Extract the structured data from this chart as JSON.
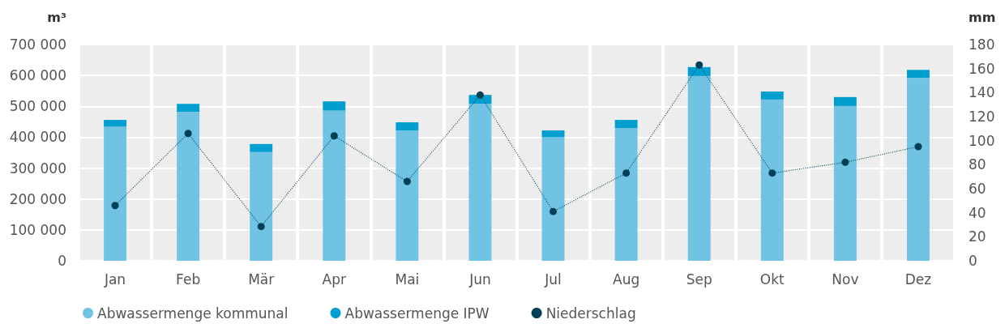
{
  "chart_data": {
    "type": "bar",
    "categories": [
      "Jan",
      "Feb",
      "Mär",
      "Apr",
      "Mai",
      "Jun",
      "Jul",
      "Aug",
      "Sep",
      "Okt",
      "Nov",
      "Dez"
    ],
    "series": [
      {
        "name": "Abwassermenge kommunal",
        "color": "#70c3e3",
        "values": [
          434000,
          482000,
          352000,
          486000,
          422000,
          508000,
          401000,
          430000,
          598000,
          522000,
          501000,
          592000
        ]
      },
      {
        "name": "Abwassermenge IPW",
        "color": "#009fd0",
        "values": [
          22000,
          26000,
          26000,
          30000,
          26000,
          29000,
          21000,
          26000,
          29000,
          26000,
          29000,
          26000
        ]
      },
      {
        "name": "Niederschlag",
        "color": "#003f55",
        "type": "line",
        "axis": "y2",
        "values": [
          46,
          106,
          28.5,
          104,
          66,
          138,
          41,
          73,
          163,
          73,
          82,
          95
        ]
      }
    ],
    "stacked": true,
    "ylabel": "m³",
    "y2label": "mm",
    "ylim": [
      0,
      700000
    ],
    "yticks": [
      0,
      {
        "value": 100000,
        "label": "100 000"
      },
      {
        "value": 200000,
        "label": "200 000"
      },
      {
        "value": 300000,
        "label": "300 000"
      },
      {
        "value": 400000,
        "label": "400 000"
      },
      {
        "value": 500000,
        "label": "500 000"
      },
      {
        "value": 600000,
        "label": "600 000"
      },
      {
        "value": 700000,
        "label": "700 000"
      }
    ],
    "y2lim": [
      0,
      180
    ],
    "y2ticks": [
      0,
      20,
      40,
      60,
      80,
      100,
      120,
      140,
      160,
      180
    ],
    "grid": true,
    "legend": "bottom left",
    "marker": "circle",
    "line_style": "dotted"
  }
}
